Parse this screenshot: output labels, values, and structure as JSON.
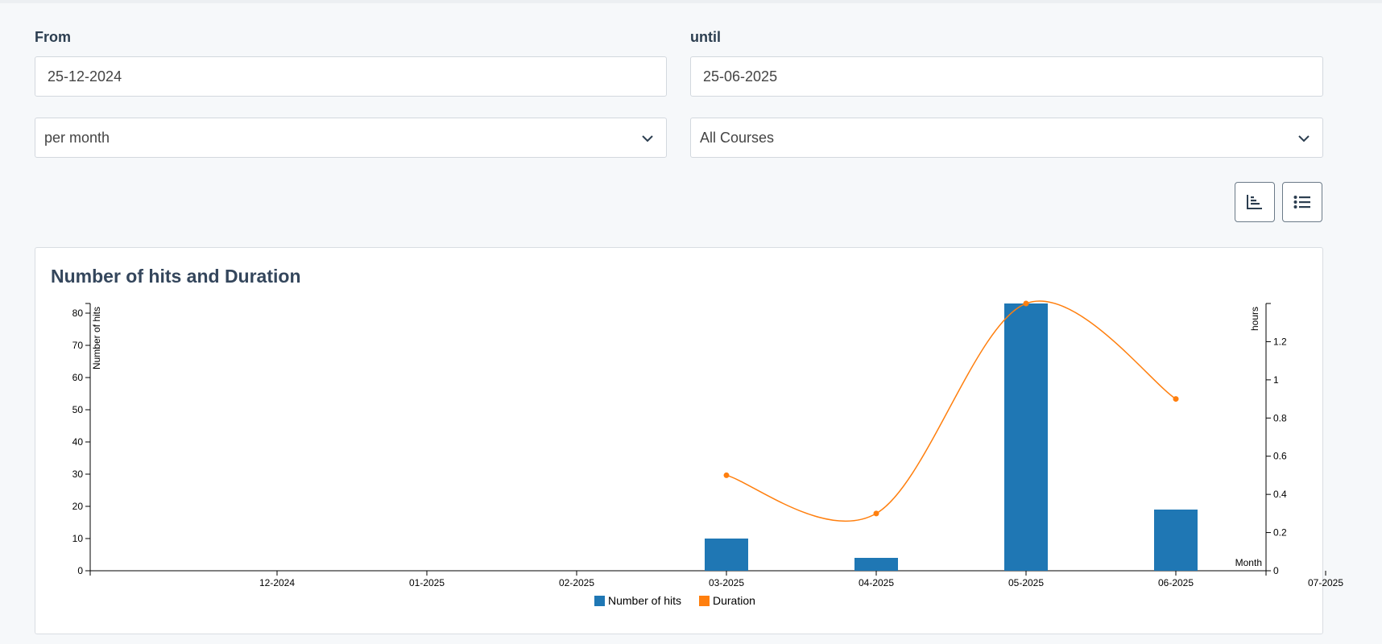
{
  "filters": {
    "from_label": "From",
    "from_value": "25-12-2024",
    "until_label": "until",
    "until_value": "25-06-2025",
    "period_value": "per month",
    "course_value": "All Courses"
  },
  "view_buttons": {
    "chart_icon": "bar-chart-icon",
    "list_icon": "list-icon"
  },
  "card": {
    "title": "Number of hits and Duration"
  },
  "colors": {
    "hits": "#1f77b4",
    "duration": "#ff7f0e"
  },
  "chart_data": {
    "type": "bar",
    "title": "Number of hits and Duration",
    "xlabel": "Month",
    "x_ticks": [
      "12-2024",
      "01-2025",
      "02-2025",
      "03-2025",
      "04-2025",
      "05-2025",
      "06-2025",
      "07-2025"
    ],
    "y_left": {
      "label": "Number of hits",
      "ticks": [
        0,
        10,
        20,
        30,
        40,
        50,
        60,
        70,
        80
      ],
      "range": [
        0,
        83
      ]
    },
    "y_right": {
      "label": "hours",
      "ticks": [
        0,
        0.2,
        0.4,
        0.6,
        0.8,
        1,
        1.2
      ],
      "range": [
        0,
        1.4
      ]
    },
    "series": [
      {
        "name": "Number of hits",
        "type": "bar",
        "axis": "left",
        "x": [
          "03-2025",
          "04-2025",
          "05-2025",
          "06-2025"
        ],
        "values": [
          10,
          4,
          83,
          19
        ]
      },
      {
        "name": "Duration",
        "type": "line",
        "axis": "right",
        "x": [
          "03-2025",
          "04-2025",
          "05-2025",
          "06-2025"
        ],
        "values": [
          0.5,
          0.3,
          1.4,
          0.9
        ]
      }
    ],
    "legend": {
      "position": "bottom"
    }
  }
}
